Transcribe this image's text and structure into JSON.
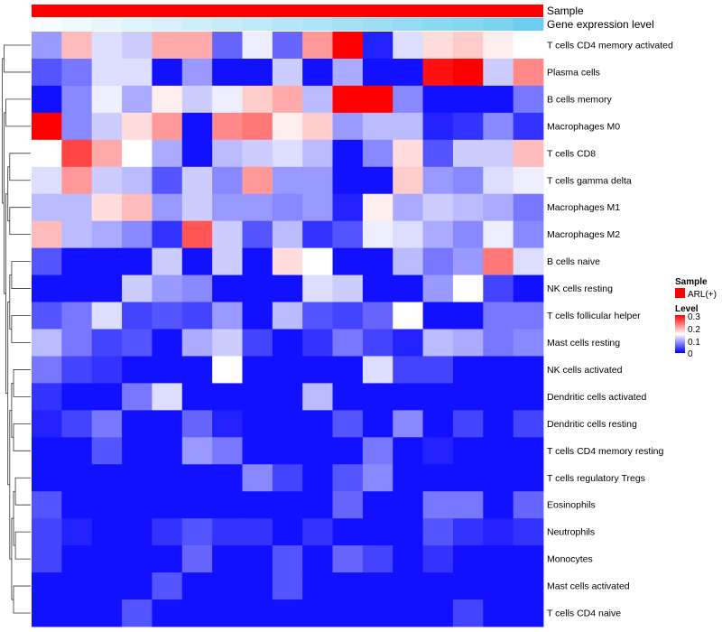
{
  "chart_data": {
    "type": "heatmap",
    "title": "",
    "annotation_tracks": [
      {
        "name": "Sample",
        "type": "categorical",
        "colors": [
          "#ff0000"
        ]
      },
      {
        "name": "Gene expression level",
        "type": "gradient",
        "colors": [
          "#ffffff",
          "#5bc8ee"
        ]
      }
    ],
    "rows": [
      "T cells CD4 memory activated",
      "Plasma cells",
      "B cells memory",
      "Macrophages M0",
      "T cells CD8",
      "T cells gamma delta",
      "Macrophages M1",
      "Macrophages M2",
      "B cells naive",
      "NK cells resting",
      "T cells follicular helper",
      "Mast cells resting",
      "NK cells activated",
      "Dendritic cells activated",
      "Dendritic cells resting",
      "T cells CD4 memory resting",
      "T cells regulatory  Tregs",
      "Eosinophils",
      "Neutrophils",
      "Monocytes",
      "Mast cells activated",
      "T cells CD4 naive"
    ],
    "values": [
      [
        0.09,
        0.19,
        0.13,
        0.12,
        0.2,
        0.2,
        0.06,
        0.14,
        0.06,
        0.21,
        0.3,
        0.02,
        0.13,
        0.17,
        0.18,
        0.16,
        0.15
      ],
      [
        0.05,
        0.07,
        0.13,
        0.13,
        0.01,
        0.09,
        0.01,
        0.01,
        0.12,
        0.01,
        0.1,
        0.01,
        0.01,
        0.29,
        0.3,
        0.12,
        0.22
      ],
      [
        0.01,
        0.08,
        0.14,
        0.1,
        0.16,
        0.12,
        0.14,
        0.18,
        0.2,
        0.11,
        0.3,
        0.3,
        0.08,
        0.01,
        0.01,
        0.01,
        0.07
      ],
      [
        0.3,
        0.08,
        0.12,
        0.17,
        0.21,
        0.01,
        0.22,
        0.23,
        0.16,
        0.18,
        0.09,
        0.11,
        0.11,
        0.02,
        0.03,
        0.08,
        0.03
      ],
      [
        0.15,
        0.26,
        0.2,
        0.15,
        0.1,
        0.01,
        0.11,
        0.12,
        0.13,
        0.11,
        0.01,
        0.08,
        0.17,
        0.05,
        0.12,
        0.12,
        0.19
      ],
      [
        0.13,
        0.21,
        0.12,
        0.11,
        0.05,
        0.12,
        0.08,
        0.21,
        0.09,
        0.09,
        0.01,
        0.01,
        0.18,
        0.09,
        0.08,
        0.13,
        0.14
      ],
      [
        0.11,
        0.11,
        0.17,
        0.19,
        0.09,
        0.12,
        0.09,
        0.09,
        0.08,
        0.09,
        0.02,
        0.16,
        0.1,
        0.12,
        0.11,
        0.1,
        0.07
      ],
      [
        0.19,
        0.11,
        0.1,
        0.08,
        0.03,
        0.25,
        0.12,
        0.05,
        0.11,
        0.03,
        0.05,
        0.14,
        0.13,
        0.1,
        0.08,
        0.14,
        0.08
      ],
      [
        0.05,
        0.01,
        0.01,
        0.01,
        0.12,
        0.01,
        0.12,
        0.01,
        0.17,
        0.15,
        0.01,
        0.01,
        0.11,
        0.07,
        0.09,
        0.23,
        0.13
      ],
      [
        0.01,
        0.01,
        0.01,
        0.12,
        0.09,
        0.08,
        0.01,
        0.01,
        0.01,
        0.13,
        0.12,
        0.01,
        0.01,
        0.09,
        0.15,
        0.04,
        0.01
      ],
      [
        0.05,
        0.07,
        0.13,
        0.04,
        0.05,
        0.04,
        0.09,
        0.01,
        0.11,
        0.05,
        0.04,
        0.06,
        0.15,
        0.01,
        0.01,
        0.07,
        0.07
      ],
      [
        0.11,
        0.07,
        0.04,
        0.05,
        0.01,
        0.1,
        0.12,
        0.04,
        0.01,
        0.03,
        0.07,
        0.04,
        0.02,
        0.11,
        0.1,
        0.07,
        0.08
      ],
      [
        0.07,
        0.04,
        0.03,
        0.01,
        0.01,
        0.01,
        0.15,
        0.01,
        0.01,
        0.01,
        0.01,
        0.13,
        0.04,
        0.04,
        0.01,
        0.01,
        0.01
      ],
      [
        0.03,
        0.01,
        0.01,
        0.07,
        0.13,
        0.01,
        0.01,
        0.01,
        0.01,
        0.11,
        0.01,
        0.01,
        0.01,
        0.01,
        0.01,
        0.01,
        0.01
      ],
      [
        0.02,
        0.04,
        0.07,
        0.01,
        0.01,
        0.06,
        0.02,
        0.01,
        0.01,
        0.01,
        0.05,
        0.01,
        0.08,
        0.01,
        0.04,
        0.01,
        0.04
      ],
      [
        0.01,
        0.01,
        0.05,
        0.01,
        0.01,
        0.09,
        0.07,
        0.01,
        0.01,
        0.01,
        0.01,
        0.07,
        0.01,
        0.02,
        0.01,
        0.01,
        0.01
      ],
      [
        0.01,
        0.01,
        0.01,
        0.01,
        0.01,
        0.01,
        0.01,
        0.08,
        0.04,
        0.01,
        0.05,
        0.08,
        0.01,
        0.01,
        0.01,
        0.01,
        0.01
      ],
      [
        0.05,
        0.01,
        0.01,
        0.01,
        0.01,
        0.01,
        0.01,
        0.01,
        0.01,
        0.01,
        0.06,
        0.01,
        0.01,
        0.07,
        0.07,
        0.01,
        0.06
      ],
      [
        0.04,
        0.02,
        0.01,
        0.01,
        0.03,
        0.05,
        0.03,
        0.03,
        0.01,
        0.03,
        0.01,
        0.01,
        0.01,
        0.05,
        0.03,
        0.02,
        0.03
      ],
      [
        0.04,
        0.01,
        0.01,
        0.01,
        0.01,
        0.06,
        0.01,
        0.01,
        0.05,
        0.01,
        0.06,
        0.04,
        0.01,
        0.03,
        0.01,
        0.01,
        0.01
      ],
      [
        0.01,
        0.01,
        0.01,
        0.01,
        0.05,
        0.01,
        0.01,
        0.01,
        0.05,
        0.01,
        0.01,
        0.01,
        0.01,
        0.01,
        0.01,
        0.01,
        0.01
      ],
      [
        0.01,
        0.01,
        0.01,
        0.05,
        0.01,
        0.01,
        0.01,
        0.01,
        0.01,
        0.01,
        0.01,
        0.01,
        0.01,
        0.01,
        0.04,
        0.01,
        0.01
      ]
    ],
    "gene_expression_level": [
      0.05,
      0.1,
      0.15,
      0.2,
      0.25,
      0.3,
      0.35,
      0.4,
      0.45,
      0.5,
      0.55,
      0.6,
      0.65,
      0.7,
      0.75,
      0.8,
      0.9
    ],
    "color_scale": {
      "min": 0,
      "mid": 0.15,
      "max": 0.3,
      "low": "#0000ff",
      "mid_color": "#ffffff",
      "high": "#ff0000"
    },
    "legend": {
      "sample_title": "Sample",
      "sample_entries": [
        {
          "label": "ARL(+)",
          "color": "#ff0000"
        }
      ],
      "level_title": "Level",
      "level_ticks": [
        "0.3",
        "0.2",
        "0.1",
        "0"
      ],
      "placement": "right"
    }
  }
}
